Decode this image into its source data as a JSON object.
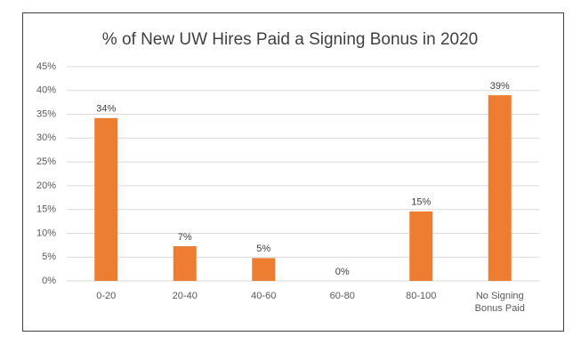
{
  "chart_data": {
    "type": "bar",
    "title": "% of New UW Hires Paid a Signing Bonus in 2020",
    "categories": [
      "0-20",
      "20-40",
      "40-60",
      "60-80",
      "80-100",
      "No Signing Bonus Paid"
    ],
    "values": [
      34.2,
      7.3,
      4.8,
      0,
      14.6,
      39
    ],
    "value_labels": [
      "34%",
      "7%",
      "5%",
      "0%",
      "15%",
      "39%"
    ],
    "color": "#ed7d31",
    "ylim": [
      0,
      45
    ],
    "yticks": [
      {
        "value": 0,
        "label": "0%"
      },
      {
        "value": 5,
        "label": "5%"
      },
      {
        "value": 10,
        "label": "10%"
      },
      {
        "value": 15,
        "label": "15%"
      },
      {
        "value": 20,
        "label": "20%"
      },
      {
        "value": 25,
        "label": "25%"
      },
      {
        "value": 30,
        "label": "30%"
      },
      {
        "value": 35,
        "label": "35%"
      },
      {
        "value": 40,
        "label": "40%"
      },
      {
        "value": 45,
        "label": "45%"
      }
    ],
    "grid": true
  }
}
